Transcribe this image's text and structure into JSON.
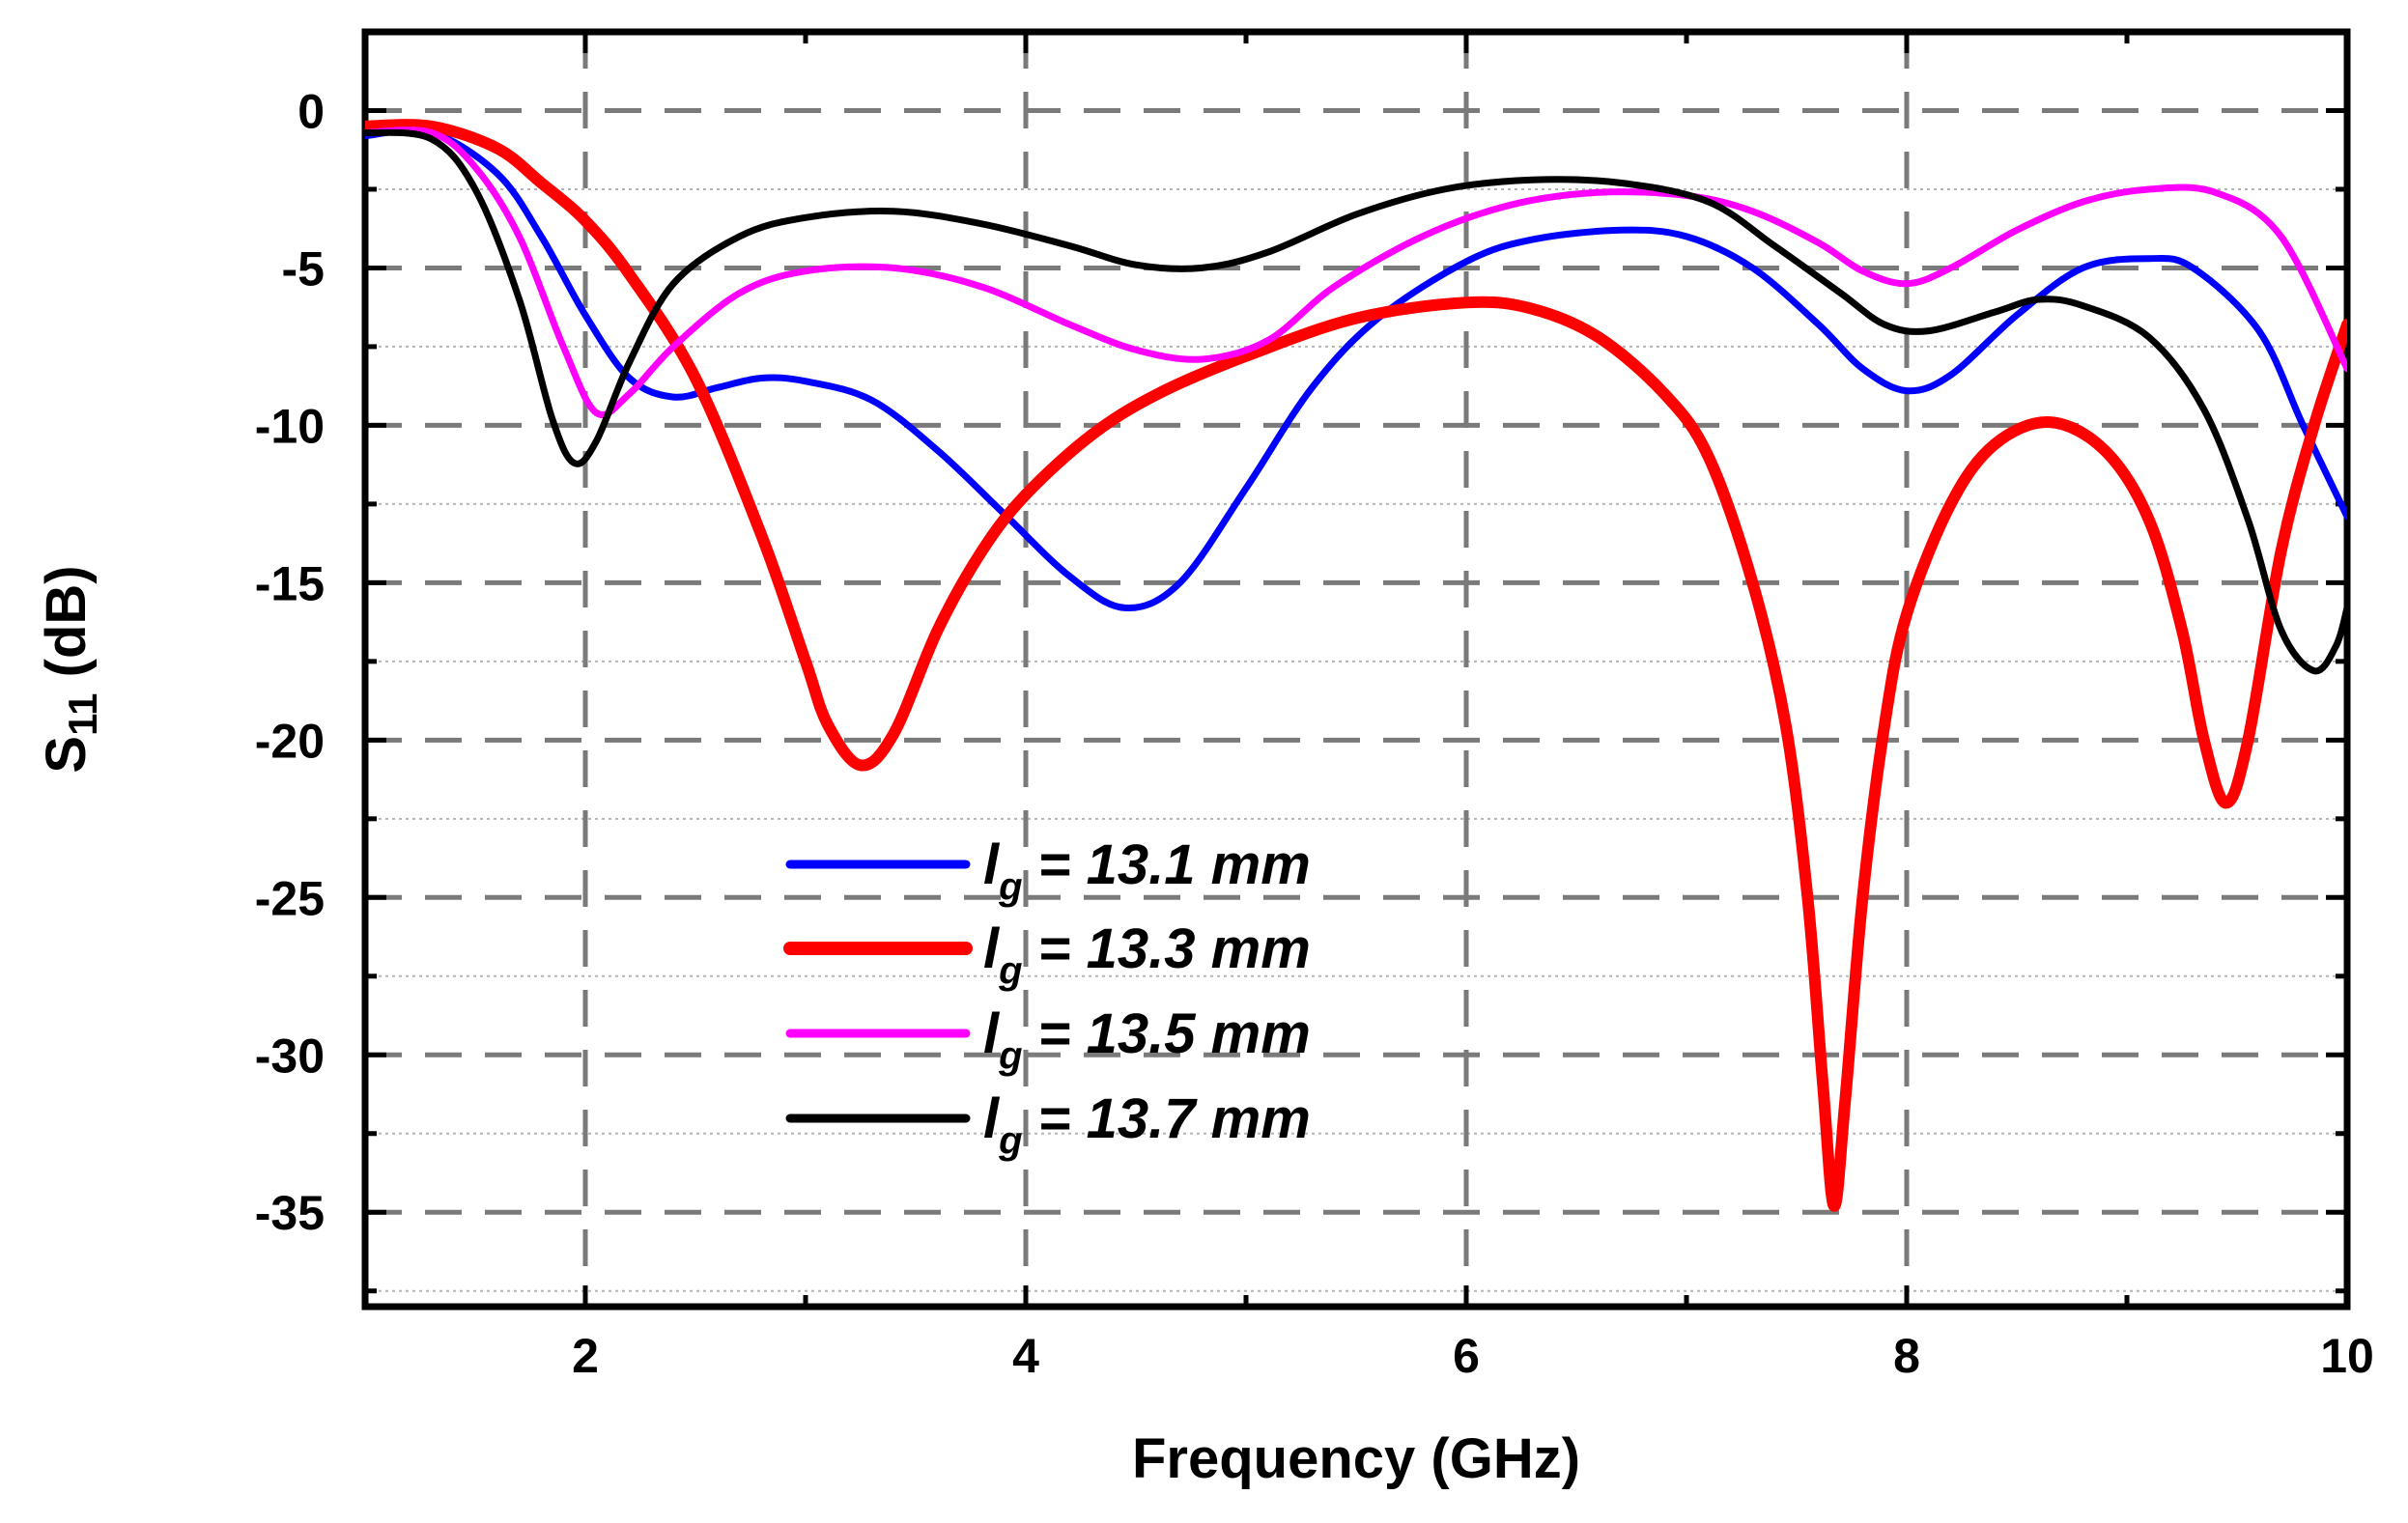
{
  "chart_data": {
    "type": "line",
    "title": "",
    "xlabel": "Frequency (GHz)",
    "ylabel_main": "S",
    "ylabel_sub": "11",
    "ylabel_unit": " (dB)",
    "xlim": [
      1,
      10
    ],
    "ylim": [
      -38,
      2.5
    ],
    "xticks": [
      2,
      4,
      6,
      8,
      10
    ],
    "yticks": [
      0,
      -5,
      -10,
      -15,
      -20,
      -25,
      -30,
      -35
    ],
    "grid": true,
    "legend_position": "bottom-center",
    "series": [
      {
        "name_prefix": "l",
        "name_sub": "g",
        "name_rest": " = 13.1 mm",
        "color": "#0000ff",
        "points": [
          [
            1.0,
            -0.8
          ],
          [
            1.3,
            -0.7
          ],
          [
            1.6,
            -2.0
          ],
          [
            1.8,
            -4.0
          ],
          [
            2.0,
            -6.5
          ],
          [
            2.2,
            -8.5
          ],
          [
            2.4,
            -9.1
          ],
          [
            2.6,
            -8.8
          ],
          [
            2.8,
            -8.5
          ],
          [
            3.0,
            -8.6
          ],
          [
            3.3,
            -9.2
          ],
          [
            3.6,
            -10.8
          ],
          [
            3.9,
            -12.8
          ],
          [
            4.2,
            -14.8
          ],
          [
            4.45,
            -15.8
          ],
          [
            4.7,
            -15.0
          ],
          [
            5.0,
            -12.0
          ],
          [
            5.3,
            -8.8
          ],
          [
            5.6,
            -6.6
          ],
          [
            6.0,
            -4.8
          ],
          [
            6.3,
            -4.1
          ],
          [
            6.7,
            -3.8
          ],
          [
            7.0,
            -4.0
          ],
          [
            7.3,
            -5.0
          ],
          [
            7.6,
            -6.8
          ],
          [
            7.8,
            -8.2
          ],
          [
            8.0,
            -8.9
          ],
          [
            8.2,
            -8.4
          ],
          [
            8.5,
            -6.5
          ],
          [
            8.8,
            -5.0
          ],
          [
            9.1,
            -4.7
          ],
          [
            9.3,
            -5.0
          ],
          [
            9.6,
            -7.0
          ],
          [
            9.8,
            -10.0
          ],
          [
            10.0,
            -12.9
          ]
        ]
      },
      {
        "name_prefix": "l",
        "name_sub": "g",
        "name_rest": " = 13.3 mm",
        "color": "#ff0000",
        "points": [
          [
            1.0,
            -0.5
          ],
          [
            1.3,
            -0.5
          ],
          [
            1.6,
            -1.2
          ],
          [
            1.8,
            -2.3
          ],
          [
            2.0,
            -3.5
          ],
          [
            2.2,
            -5.2
          ],
          [
            2.5,
            -8.5
          ],
          [
            2.8,
            -13.5
          ],
          [
            3.0,
            -17.5
          ],
          [
            3.1,
            -19.5
          ],
          [
            3.25,
            -20.8
          ],
          [
            3.4,
            -19.8
          ],
          [
            3.6,
            -16.5
          ],
          [
            3.8,
            -14.0
          ],
          [
            4.0,
            -12.2
          ],
          [
            4.3,
            -10.3
          ],
          [
            4.6,
            -9.0
          ],
          [
            5.0,
            -7.8
          ],
          [
            5.5,
            -6.6
          ],
          [
            6.0,
            -6.1
          ],
          [
            6.3,
            -6.3
          ],
          [
            6.6,
            -7.2
          ],
          [
            6.9,
            -9.0
          ],
          [
            7.1,
            -11.0
          ],
          [
            7.3,
            -15.0
          ],
          [
            7.45,
            -19.5
          ],
          [
            7.55,
            -25.0
          ],
          [
            7.62,
            -31.0
          ],
          [
            7.67,
            -34.8
          ],
          [
            7.72,
            -31.5
          ],
          [
            7.8,
            -25.0
          ],
          [
            7.9,
            -19.5
          ],
          [
            8.0,
            -16.0
          ],
          [
            8.2,
            -12.5
          ],
          [
            8.4,
            -10.6
          ],
          [
            8.65,
            -9.9
          ],
          [
            8.9,
            -10.8
          ],
          [
            9.1,
            -13.0
          ],
          [
            9.25,
            -16.5
          ],
          [
            9.35,
            -20.0
          ],
          [
            9.45,
            -22.0
          ],
          [
            9.55,
            -20.0
          ],
          [
            9.7,
            -14.0
          ],
          [
            9.85,
            -10.0
          ],
          [
            10.0,
            -6.8
          ]
        ]
      },
      {
        "name_prefix": "l",
        "name_sub": "g",
        "name_rest": " = 13.5 mm",
        "color": "#ff00ff",
        "points": [
          [
            1.0,
            -0.7
          ],
          [
            1.3,
            -0.7
          ],
          [
            1.5,
            -1.8
          ],
          [
            1.7,
            -4.0
          ],
          [
            1.9,
            -7.5
          ],
          [
            2.05,
            -9.6
          ],
          [
            2.2,
            -9.0
          ],
          [
            2.4,
            -7.5
          ],
          [
            2.7,
            -5.8
          ],
          [
            3.0,
            -5.1
          ],
          [
            3.4,
            -5.0
          ],
          [
            3.8,
            -5.6
          ],
          [
            4.2,
            -6.8
          ],
          [
            4.5,
            -7.6
          ],
          [
            4.8,
            -7.9
          ],
          [
            5.1,
            -7.3
          ],
          [
            5.4,
            -5.6
          ],
          [
            5.8,
            -4.0
          ],
          [
            6.2,
            -3.0
          ],
          [
            6.6,
            -2.6
          ],
          [
            7.0,
            -2.7
          ],
          [
            7.3,
            -3.2
          ],
          [
            7.6,
            -4.2
          ],
          [
            7.8,
            -5.1
          ],
          [
            8.0,
            -5.5
          ],
          [
            8.2,
            -5.0
          ],
          [
            8.5,
            -3.8
          ],
          [
            8.8,
            -2.9
          ],
          [
            9.1,
            -2.5
          ],
          [
            9.4,
            -2.6
          ],
          [
            9.7,
            -4.0
          ],
          [
            10.0,
            -8.2
          ]
        ]
      },
      {
        "name_prefix": "l",
        "name_sub": "g",
        "name_rest": " = 13.7 mm",
        "color": "#000000",
        "points": [
          [
            1.0,
            -0.7
          ],
          [
            1.3,
            -0.9
          ],
          [
            1.5,
            -2.5
          ],
          [
            1.7,
            -6.0
          ],
          [
            1.85,
            -9.8
          ],
          [
            1.95,
            -11.2
          ],
          [
            2.05,
            -10.5
          ],
          [
            2.2,
            -8.0
          ],
          [
            2.4,
            -5.5
          ],
          [
            2.7,
            -4.0
          ],
          [
            3.0,
            -3.4
          ],
          [
            3.4,
            -3.2
          ],
          [
            3.8,
            -3.6
          ],
          [
            4.2,
            -4.3
          ],
          [
            4.5,
            -4.9
          ],
          [
            4.8,
            -5.0
          ],
          [
            5.1,
            -4.5
          ],
          [
            5.5,
            -3.3
          ],
          [
            5.9,
            -2.5
          ],
          [
            6.3,
            -2.2
          ],
          [
            6.7,
            -2.3
          ],
          [
            7.1,
            -2.9
          ],
          [
            7.4,
            -4.3
          ],
          [
            7.7,
            -5.8
          ],
          [
            7.9,
            -6.8
          ],
          [
            8.1,
            -7.0
          ],
          [
            8.4,
            -6.4
          ],
          [
            8.6,
            -6.0
          ],
          [
            8.8,
            -6.2
          ],
          [
            9.1,
            -7.2
          ],
          [
            9.35,
            -9.5
          ],
          [
            9.55,
            -13.0
          ],
          [
            9.7,
            -16.5
          ],
          [
            9.85,
            -17.8
          ],
          [
            9.95,
            -17.0
          ],
          [
            10.0,
            -15.8
          ]
        ]
      }
    ]
  }
}
